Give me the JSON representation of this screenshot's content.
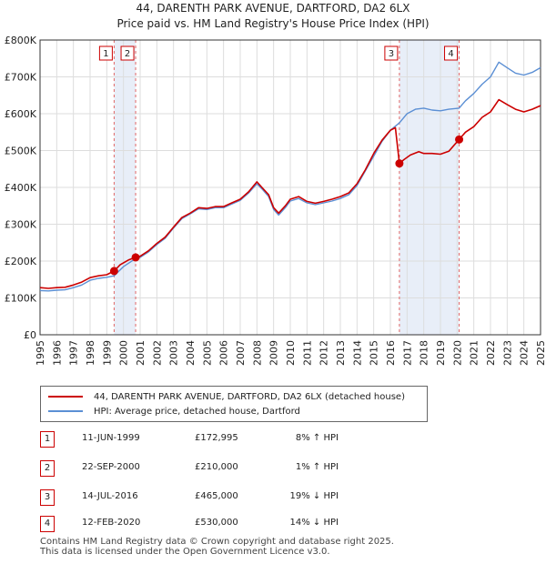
{
  "chart_data": {
    "type": "line",
    "title": "44, DARENTH PARK AVENUE, DARTFORD, DA2 6LX",
    "subtitle": "Price paid vs. HM Land Registry's House Price Index (HPI)",
    "xlim": [
      1995,
      2025
    ],
    "ylim": [
      0,
      800000
    ],
    "yticks": [
      {
        "value": 0,
        "label": "£0"
      },
      {
        "value": 100000,
        "label": "£100K"
      },
      {
        "value": 200000,
        "label": "£200K"
      },
      {
        "value": 300000,
        "label": "£300K"
      },
      {
        "value": 400000,
        "label": "£400K"
      },
      {
        "value": 500000,
        "label": "£500K"
      },
      {
        "value": 600000,
        "label": "£600K"
      },
      {
        "value": 700000,
        "label": "£700K"
      },
      {
        "value": 800000,
        "label": "£800K"
      }
    ],
    "xticks": [
      "1995",
      "1996",
      "1997",
      "1998",
      "1999",
      "2000",
      "2001",
      "2002",
      "2003",
      "2004",
      "2005",
      "2006",
      "2007",
      "2008",
      "2009",
      "2010",
      "2011",
      "2012",
      "2013",
      "2014",
      "2015",
      "2016",
      "2017",
      "2018",
      "2019",
      "2020",
      "2021",
      "2022",
      "2023",
      "2024",
      "2025"
    ],
    "shaded_ranges": [
      {
        "from": 1999.44,
        "to": 2000.73
      },
      {
        "from": 2016.54,
        "to": 2020.12
      }
    ],
    "series": [
      {
        "name": "44, DARENTH PARK AVENUE, DARTFORD, DA2 6LX (detached house)",
        "color": "#cc0000",
        "points": [
          [
            1995.0,
            128000
          ],
          [
            1995.5,
            126000
          ],
          [
            1996.0,
            128000
          ],
          [
            1996.5,
            129000
          ],
          [
            1997.0,
            135000
          ],
          [
            1997.5,
            143000
          ],
          [
            1998.0,
            155000
          ],
          [
            1998.5,
            160000
          ],
          [
            1999.0,
            163000
          ],
          [
            1999.44,
            172995
          ],
          [
            1999.44,
            172995
          ],
          [
            1999.8,
            190000
          ],
          [
            2000.3,
            203000
          ],
          [
            2000.73,
            210000
          ],
          [
            2000.73,
            210000
          ],
          [
            2001.0,
            213000
          ],
          [
            2001.5,
            228000
          ],
          [
            2002.0,
            248000
          ],
          [
            2002.5,
            265000
          ],
          [
            2003.0,
            292000
          ],
          [
            2003.5,
            318000
          ],
          [
            2004.0,
            330000
          ],
          [
            2004.5,
            345000
          ],
          [
            2005.0,
            343000
          ],
          [
            2005.5,
            348000
          ],
          [
            2006.0,
            348000
          ],
          [
            2006.5,
            358000
          ],
          [
            2007.0,
            368000
          ],
          [
            2007.5,
            388000
          ],
          [
            2008.0,
            415000
          ],
          [
            2008.3,
            400000
          ],
          [
            2008.7,
            380000
          ],
          [
            2009.0,
            345000
          ],
          [
            2009.3,
            330000
          ],
          [
            2009.7,
            350000
          ],
          [
            2010.0,
            368000
          ],
          [
            2010.5,
            375000
          ],
          [
            2011.0,
            362000
          ],
          [
            2011.5,
            357000
          ],
          [
            2012.0,
            362000
          ],
          [
            2012.5,
            368000
          ],
          [
            2013.0,
            375000
          ],
          [
            2013.5,
            385000
          ],
          [
            2014.0,
            410000
          ],
          [
            2014.5,
            448000
          ],
          [
            2015.0,
            492000
          ],
          [
            2015.5,
            528000
          ],
          [
            2016.0,
            555000
          ],
          [
            2016.3,
            562000
          ],
          [
            2016.54,
            465000
          ],
          [
            2016.54,
            465000
          ],
          [
            2016.8,
            475000
          ],
          [
            2017.2,
            488000
          ],
          [
            2017.7,
            497000
          ],
          [
            2018.0,
            492000
          ],
          [
            2018.5,
            492000
          ],
          [
            2019.0,
            490000
          ],
          [
            2019.5,
            498000
          ],
          [
            2020.12,
            530000
          ],
          [
            2020.12,
            530000
          ],
          [
            2020.5,
            550000
          ],
          [
            2021.0,
            565000
          ],
          [
            2021.5,
            590000
          ],
          [
            2022.0,
            605000
          ],
          [
            2022.5,
            638000
          ],
          [
            2023.0,
            625000
          ],
          [
            2023.5,
            612000
          ],
          [
            2024.0,
            605000
          ],
          [
            2024.5,
            612000
          ],
          [
            2025.0,
            622000
          ]
        ]
      },
      {
        "name": "HPI: Average price, detached house, Dartford",
        "color": "#5b8fd4",
        "points": [
          [
            1995.0,
            120000
          ],
          [
            1995.5,
            119000
          ],
          [
            1996.0,
            121000
          ],
          [
            1996.5,
            122000
          ],
          [
            1997.0,
            128000
          ],
          [
            1997.5,
            135000
          ],
          [
            1998.0,
            148000
          ],
          [
            1998.5,
            153000
          ],
          [
            1999.0,
            156000
          ],
          [
            1999.44,
            160000
          ],
          [
            2000.0,
            185000
          ],
          [
            2000.73,
            207000
          ],
          [
            2001.0,
            210000
          ],
          [
            2001.5,
            225000
          ],
          [
            2002.0,
            245000
          ],
          [
            2002.5,
            262000
          ],
          [
            2003.0,
            290000
          ],
          [
            2003.5,
            315000
          ],
          [
            2004.0,
            328000
          ],
          [
            2004.5,
            342000
          ],
          [
            2005.0,
            340000
          ],
          [
            2005.5,
            345000
          ],
          [
            2006.0,
            345000
          ],
          [
            2006.5,
            355000
          ],
          [
            2007.0,
            365000
          ],
          [
            2007.5,
            385000
          ],
          [
            2008.0,
            410000
          ],
          [
            2008.3,
            396000
          ],
          [
            2008.7,
            375000
          ],
          [
            2009.0,
            340000
          ],
          [
            2009.3,
            325000
          ],
          [
            2009.7,
            345000
          ],
          [
            2010.0,
            363000
          ],
          [
            2010.5,
            370000
          ],
          [
            2011.0,
            358000
          ],
          [
            2011.5,
            353000
          ],
          [
            2012.0,
            358000
          ],
          [
            2012.5,
            363000
          ],
          [
            2013.0,
            370000
          ],
          [
            2013.5,
            380000
          ],
          [
            2014.0,
            405000
          ],
          [
            2014.5,
            445000
          ],
          [
            2015.0,
            485000
          ],
          [
            2015.5,
            525000
          ],
          [
            2016.0,
            555000
          ],
          [
            2016.54,
            575000
          ],
          [
            2017.0,
            600000
          ],
          [
            2017.5,
            612000
          ],
          [
            2018.0,
            615000
          ],
          [
            2018.5,
            610000
          ],
          [
            2019.0,
            608000
          ],
          [
            2019.5,
            612000
          ],
          [
            2020.12,
            615000
          ],
          [
            2020.5,
            635000
          ],
          [
            2021.0,
            655000
          ],
          [
            2021.5,
            680000
          ],
          [
            2022.0,
            700000
          ],
          [
            2022.5,
            740000
          ],
          [
            2023.0,
            725000
          ],
          [
            2023.5,
            710000
          ],
          [
            2024.0,
            705000
          ],
          [
            2024.5,
            712000
          ],
          [
            2025.0,
            725000
          ]
        ]
      }
    ],
    "sales": [
      {
        "num": "1",
        "x": 1999.44,
        "value": 172995
      },
      {
        "num": "2",
        "x": 2000.73,
        "value": 210000
      },
      {
        "num": "3",
        "x": 2016.54,
        "value": 465000
      },
      {
        "num": "4",
        "x": 2020.12,
        "value": 530000
      }
    ]
  },
  "legend": {
    "property_label": "44, DARENTH PARK AVENUE, DARTFORD, DA2 6LX (detached house)",
    "hpi_label": "HPI: Average price, detached house, Dartford"
  },
  "table": [
    {
      "num": "1",
      "date": "11-JUN-1999",
      "price": "£172,995",
      "hpi": "8% ↑ HPI"
    },
    {
      "num": "2",
      "date": "22-SEP-2000",
      "price": "£210,000",
      "hpi": "1% ↑ HPI"
    },
    {
      "num": "3",
      "date": "14-JUL-2016",
      "price": "£465,000",
      "hpi": "19% ↓ HPI"
    },
    {
      "num": "4",
      "date": "12-FEB-2020",
      "price": "£530,000",
      "hpi": "14% ↓ HPI"
    }
  ],
  "footer": {
    "line1": "Contains HM Land Registry data © Crown copyright and database right 2025.",
    "line2": "This data is licensed under the Open Government Licence v3.0."
  }
}
